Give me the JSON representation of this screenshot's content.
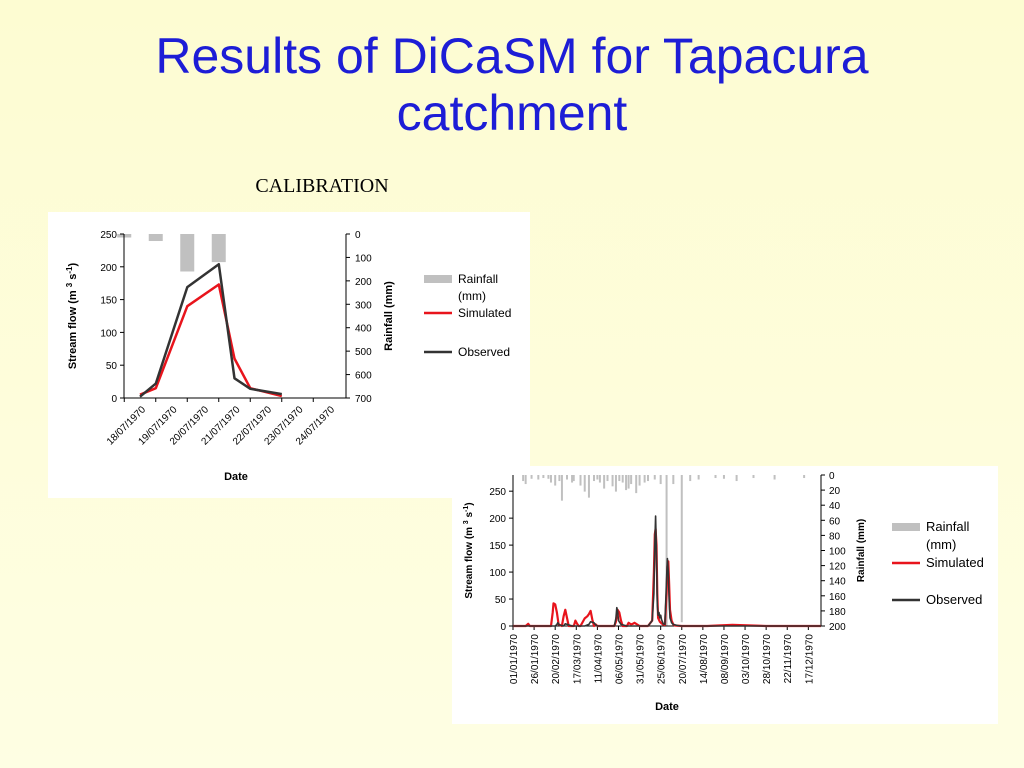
{
  "slide": {
    "title_line1": "Results of DiCaSM for Tapacura",
    "title_line2": "catchment",
    "subtitle": "CALIBRATION"
  },
  "colors": {
    "title": "#1d1dd6",
    "rainfall": "#c0c0c0",
    "simulated": "#e8141c",
    "observed": "#333333",
    "background": "#fdfcd2"
  },
  "chart_data": [
    {
      "type": "line",
      "title": "",
      "xlabel": "Date",
      "ylabel": "Stream flow (m 3 s-1)",
      "y2label": "Rainfall (mm)",
      "ylim": [
        0,
        250
      ],
      "y2lim": [
        0,
        700
      ],
      "y2_inverted": true,
      "yticks": [
        "0",
        "50",
        "100",
        "150",
        "200",
        "250"
      ],
      "y2ticks": [
        "0",
        "100",
        "200",
        "300",
        "400",
        "500",
        "600",
        "700"
      ],
      "categories": [
        "18/07/1970",
        "19/07/1970",
        "20/07/1970",
        "21/07/1970",
        "22/07/1970",
        "23/07/1970",
        "24/07/1970"
      ],
      "x_index": [
        0,
        1,
        2,
        3,
        4,
        5,
        6
      ],
      "legend": [
        "Rainfall",
        "(mm)",
        "Simulated",
        "Observed"
      ],
      "legend_position": "right",
      "grid": false,
      "series": [
        {
          "name": "Rainfall (mm)",
          "type": "bar",
          "axis": "y2",
          "colorKey": "rainfall",
          "x": [
            -0.5,
            0.5,
            1.5,
            2.5
          ],
          "values": [
            15,
            30,
            160,
            120
          ]
        },
        {
          "name": "Simulated",
          "type": "line",
          "colorKey": "simulated",
          "x": [
            0,
            0.5,
            1.5,
            2.5,
            3,
            3.5,
            4.5
          ],
          "values": [
            5,
            15,
            140,
            173,
            60,
            15,
            3
          ]
        },
        {
          "name": "Observed",
          "type": "line",
          "colorKey": "observed",
          "x": [
            0,
            0.5,
            1.5,
            2.5,
            3,
            3.5,
            4.5
          ],
          "values": [
            2,
            22,
            169,
            204,
            30,
            14,
            6
          ]
        }
      ]
    },
    {
      "type": "line",
      "title": "",
      "xlabel": "Date",
      "ylabel": "Stream flow (m 3 s-1)",
      "y2label": "Rainfall (mm)",
      "ylim": [
        0,
        280
      ],
      "y2lim": [
        0,
        200
      ],
      "y2_inverted": true,
      "yticks": [
        "0",
        "50",
        "100",
        "150",
        "200",
        "250"
      ],
      "y2ticks": [
        "0",
        "20",
        "40",
        "60",
        "80",
        "100",
        "120",
        "140",
        "160",
        "180",
        "200"
      ],
      "categories": [
        "01/01/1970",
        "26/01/1970",
        "20/02/1970",
        "17/03/1970",
        "11/04/1970",
        "06/05/1970",
        "31/05/1970",
        "25/06/1970",
        "20/07/1970",
        "14/08/1970",
        "08/09/1970",
        "03/10/1970",
        "28/10/1970",
        "22/11/1970",
        "17/12/1970"
      ],
      "x_range_days": [
        0,
        365
      ],
      "legend": [
        "Rainfall",
        "(mm)",
        "Simulated",
        "Observed"
      ],
      "legend_position": "right",
      "grid": false,
      "series": [
        {
          "name": "Rainfall (mm)",
          "type": "bar",
          "axis": "y2",
          "colorKey": "rainfall",
          "x": [
            12,
            15,
            22,
            30,
            36,
            42,
            45,
            50,
            55,
            58,
            64,
            70,
            72,
            80,
            85,
            90,
            96,
            100,
            103,
            108,
            112,
            118,
            122,
            126,
            130,
            134,
            137,
            140,
            146,
            150,
            156,
            160,
            168,
            175,
            182,
            190,
            200,
            210,
            220,
            240,
            250,
            265,
            285,
            310,
            345
          ],
          "values": [
            8,
            12,
            5,
            6,
            4,
            5,
            10,
            14,
            8,
            34,
            6,
            10,
            8,
            14,
            22,
            30,
            8,
            6,
            10,
            18,
            8,
            15,
            22,
            8,
            10,
            20,
            18,
            12,
            24,
            14,
            10,
            8,
            6,
            12,
            200,
            12,
            195,
            8,
            6,
            4,
            5,
            8,
            4,
            6,
            4
          ]
        },
        {
          "name": "Simulated",
          "type": "line",
          "colorKey": "simulated",
          "x": [
            0,
            15,
            18,
            20,
            45,
            47,
            48,
            50,
            52,
            54,
            58,
            60,
            62,
            64,
            66,
            72,
            74,
            76,
            78,
            80,
            85,
            88,
            90,
            92,
            94,
            96,
            98,
            100,
            120,
            122,
            124,
            126,
            128,
            130,
            135,
            137,
            140,
            142,
            144,
            150,
            160,
            165,
            167,
            168,
            169,
            170,
            171,
            172,
            174,
            176,
            178,
            180,
            182,
            183,
            184,
            185,
            186,
            188,
            190,
            192,
            200,
            230,
            260,
            300,
            365
          ],
          "values": [
            0,
            0,
            4,
            0,
            0,
            25,
            42,
            40,
            25,
            3,
            0,
            18,
            30,
            15,
            0,
            0,
            10,
            4,
            0,
            0,
            14,
            18,
            22,
            28,
            12,
            0,
            3,
            0,
            0,
            8,
            30,
            25,
            10,
            0,
            0,
            6,
            3,
            4,
            6,
            0,
            0,
            10,
            100,
            170,
            180,
            150,
            60,
            15,
            8,
            5,
            3,
            2,
            60,
            110,
            120,
            80,
            30,
            10,
            3,
            1,
            0,
            0,
            2,
            0,
            0
          ]
        },
        {
          "name": "Observed",
          "type": "line",
          "colorKey": "observed",
          "x": [
            0,
            50,
            52,
            53,
            55,
            60,
            62,
            70,
            85,
            90,
            92,
            96,
            98,
            100,
            110,
            120,
            122,
            123,
            124,
            125,
            128,
            135,
            150,
            160,
            165,
            167,
            168,
            169,
            170,
            171,
            172,
            173,
            174,
            175,
            176,
            177,
            178,
            180,
            182,
            183,
            184,
            185,
            186,
            188,
            190,
            195,
            200,
            230,
            260,
            300,
            365
          ],
          "values": [
            0,
            0,
            3,
            6,
            2,
            0,
            4,
            0,
            0,
            3,
            8,
            6,
            2,
            0,
            0,
            0,
            14,
            34,
            28,
            10,
            3,
            0,
            0,
            0,
            10,
            60,
            150,
            204,
            130,
            40,
            20,
            25,
            15,
            20,
            12,
            8,
            4,
            3,
            90,
            125,
            100,
            50,
            15,
            6,
            3,
            1,
            0,
            0,
            0,
            0,
            0
          ]
        }
      ]
    }
  ]
}
